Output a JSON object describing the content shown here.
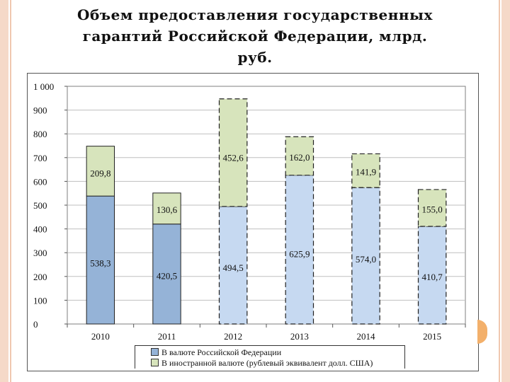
{
  "page": {
    "title_lines": [
      "Объем предоставления государственных",
      "гарантий Российской Федерации, млрд.",
      "руб."
    ]
  },
  "colors": {
    "domestic": "#95b3d7",
    "foreign": "#d7e4bc",
    "domestic_light": "#c6d9f1",
    "grid": "#bfbfbf",
    "frame": "#f5d9c8",
    "accent": "#f3b06b"
  },
  "chart_data": {
    "type": "bar",
    "stacked": true,
    "title": "",
    "xlabel": "",
    "ylabel": "",
    "ylim": [
      0,
      1000
    ],
    "y_ticks": [
      "0",
      "100",
      "200",
      "300",
      "400",
      "500",
      "600",
      "700",
      "800",
      "900",
      "1 000"
    ],
    "categories": [
      "2010",
      "2011",
      "2012",
      "2013",
      "2014",
      "2015"
    ],
    "series": [
      {
        "name": "В валюте Российской Федерации",
        "values": [
          538.3,
          420.5,
          494.5,
          625.9,
          574.0,
          410.7
        ],
        "labels": [
          "538,3",
          "420,5",
          "494,5",
          "625,9",
          "574,0",
          "410,7"
        ]
      },
      {
        "name": "В иностранной валюте (рублевый эквивалент долл. США)",
        "values": [
          209.8,
          130.6,
          452.6,
          162.0,
          141.9,
          155.0
        ],
        "labels": [
          "209,8",
          "130,6",
          "452,6",
          "162,0",
          "141,9",
          "155,0"
        ]
      }
    ],
    "dashed_from_index": 2,
    "grid": true,
    "legend_position": "bottom"
  }
}
